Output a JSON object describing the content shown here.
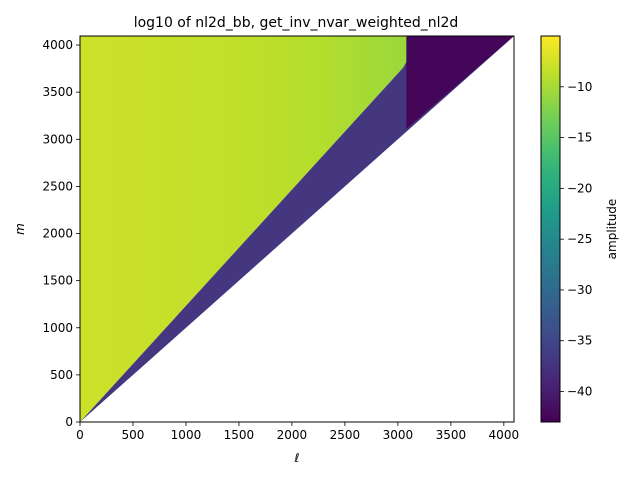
{
  "chart_data": {
    "type": "heatmap",
    "title": "log10 of nl2d_bb, get_inv_nvar_weighted_nl2d",
    "xlabel": "ℓ",
    "ylabel": "m",
    "xlim": [
      0,
      4096
    ],
    "ylim": [
      0,
      4096
    ],
    "xticks": [
      0,
      500,
      1000,
      1500,
      2000,
      2500,
      3000,
      3500,
      4000
    ],
    "yticks": [
      0,
      500,
      1000,
      1500,
      2000,
      2500,
      3000,
      3500,
      4000
    ],
    "grid": false,
    "domain": "m >= ell * 0.5 (lower-right triangle is empty)",
    "regions": [
      {
        "name": "upper-left (m much greater than ell)",
        "value_range": [
          -7,
          -9
        ]
      },
      {
        "name": "transition band near m ≈ 0.55*ell to 0.8*ell",
        "value_range": [
          -15,
          -30
        ]
      },
      {
        "name": "lower band near m ≈ 0.5*ell",
        "value_range": [
          -36,
          -39
        ]
      },
      {
        "name": "corner region ell > 3080, m > 3100",
        "value": -42
      }
    ],
    "colorbar": {
      "label": "amplitude",
      "vmin": -43,
      "vmax": -5,
      "ticks": [
        -10,
        -15,
        -20,
        -25,
        -30,
        -35,
        -40
      ],
      "colormap": "viridis"
    }
  }
}
